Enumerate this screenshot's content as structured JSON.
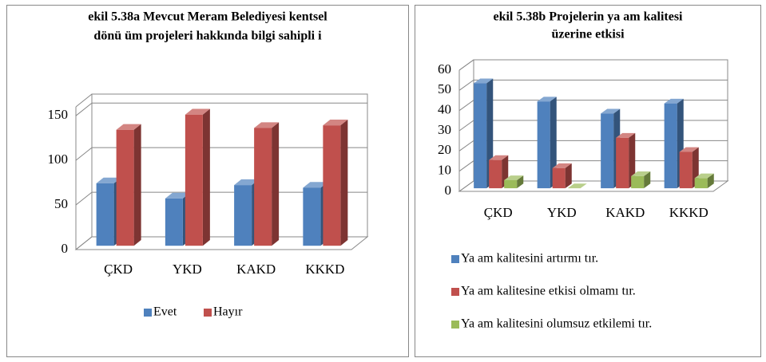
{
  "chart_data": [
    {
      "type": "bar",
      "title": [
        "ekil 5.38a Mevcut Meram Belediyesi kentsel",
        "dönü üm projeleri hakkında bilgi sahipli i"
      ],
      "categories": [
        "ÇKD",
        "YKD",
        "KAKD",
        "KKKD"
      ],
      "series": [
        {
          "name": "Evet",
          "color": "#4f81bd",
          "values": [
            70,
            53,
            68,
            65
          ]
        },
        {
          "name": "Hayır",
          "color": "#c0504d",
          "values": [
            130,
            147,
            132,
            135
          ]
        }
      ],
      "ylim": [
        0,
        160
      ],
      "yticks": [
        0,
        50,
        100,
        150
      ],
      "grid": true,
      "legend": "bottom"
    },
    {
      "type": "bar",
      "title": [
        "ekil 5.38b Projelerin ya am kalitesi",
        "üzerine etkisi"
      ],
      "categories": [
        "ÇKD",
        "YKD",
        "KAKD",
        "KKKD"
      ],
      "series": [
        {
          "name": "Ya am kalitesini artırmı tır.",
          "color": "#4f81bd",
          "values": [
            52,
            43,
            37,
            42
          ]
        },
        {
          "name": "Ya am kalitesine etkisi olmamı tır.",
          "color": "#c0504d",
          "values": [
            14,
            10,
            25,
            18
          ]
        },
        {
          "name": "Ya am kalitesini olumsuz etkilemi tır.",
          "color": "#9bbb59",
          "values": [
            4,
            0,
            6,
            5
          ]
        }
      ],
      "ylim": [
        0,
        60
      ],
      "yticks": [
        0,
        10,
        20,
        30,
        40,
        50,
        60
      ],
      "grid": true,
      "legend": "bottom"
    }
  ]
}
